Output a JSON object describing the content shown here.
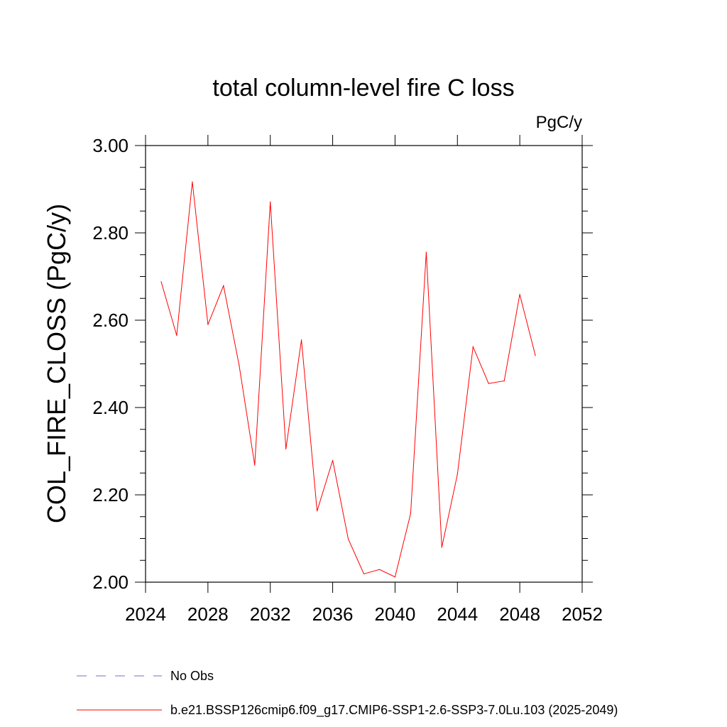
{
  "chart_data": {
    "type": "line",
    "title": "total column-level fire C loss",
    "units": "PgC/y",
    "xlabel": "",
    "ylabel": "COL_FIRE_CLOSS  (PgC/y)",
    "xlim": [
      2024,
      2052
    ],
    "ylim": [
      2.0,
      3.0
    ],
    "x_ticks": [
      "2024",
      "2028",
      "2032",
      "2036",
      "2040",
      "2044",
      "2048",
      "2052"
    ],
    "y_ticks": [
      "2.00",
      "2.20",
      "2.40",
      "2.60",
      "2.80",
      "3.00"
    ],
    "grid": false,
    "legend_position": "bottom",
    "series": [
      {
        "name": "b.e21.BSSP126cmip6.f09_g17.CMIP6-SSP1-2.6-SSP3-7.0Lu.103 (2025-2049)",
        "color": "#ff0000",
        "x": [
          2025,
          2026,
          2027,
          2028,
          2029,
          2030,
          2031,
          2032,
          2033,
          2034,
          2035,
          2036,
          2037,
          2038,
          2039,
          2040,
          2041,
          2042,
          2043,
          2044,
          2045,
          2046,
          2047,
          2048,
          2049
        ],
        "values": [
          2.688,
          2.565,
          2.917,
          2.59,
          2.679,
          2.497,
          2.268,
          2.871,
          2.305,
          2.555,
          2.163,
          2.279,
          2.099,
          2.019,
          2.029,
          2.012,
          2.157,
          2.756,
          2.08,
          2.247,
          2.539,
          2.455,
          2.461,
          2.659,
          2.519
        ]
      }
    ],
    "legend": [
      {
        "label": "No Obs",
        "color": "#7b68c8",
        "style": "dashed"
      },
      {
        "label": "b.e21.BSSP126cmip6.f09_g17.CMIP6-SSP1-2.6-SSP3-7.0Lu.103 (2025-2049)",
        "color": "#ff0000",
        "style": "solid"
      }
    ]
  }
}
